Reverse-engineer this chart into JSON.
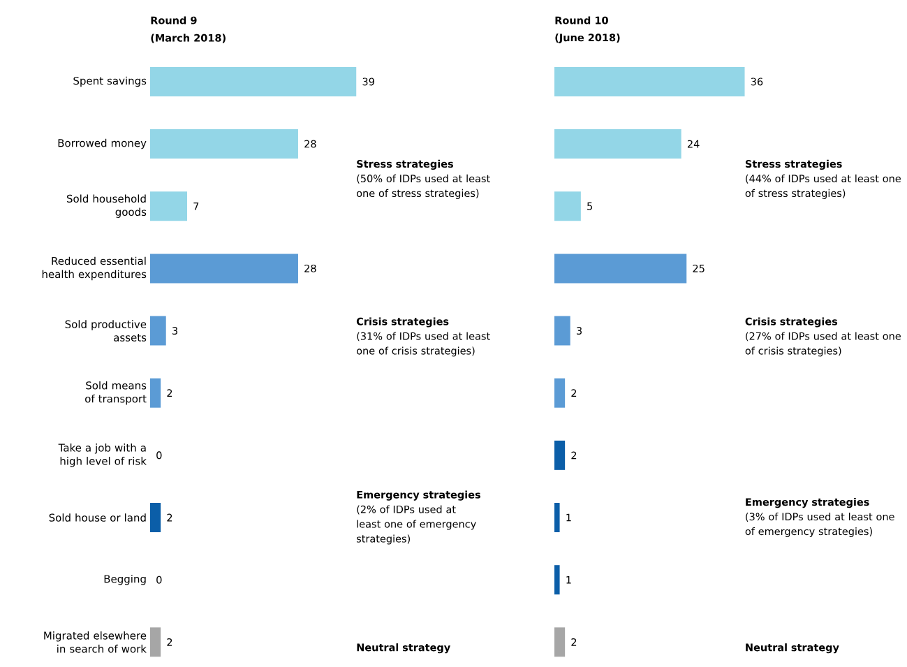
{
  "chart_data": [
    {
      "type": "bar",
      "orientation": "horizontal",
      "title": "Round 9",
      "subtitle": "(March 2018)",
      "categories": [
        "Spent savings",
        "Borrowed money",
        "Sold household goods",
        "Reduced essential health expenditures",
        "Sold productive assets",
        "Sold means of transport",
        "Take a job with a high level of risk",
        "Sold house or land",
        "Begging",
        "Migrated elsewhere in search of work"
      ],
      "values": [
        39,
        28,
        7,
        28,
        3,
        2,
        0,
        2,
        0,
        2
      ],
      "colors": [
        "#93d6e7",
        "#93d6e7",
        "#93d6e7",
        "#5b9bd5",
        "#5b9bd5",
        "#5b9bd5",
        "#0b5ea8",
        "#0b5ea8",
        "#0b5ea8",
        "#a6a6a6"
      ],
      "tick_labels": "y",
      "data_labels": true,
      "annotations": [
        "Stress strategies",
        "(50% of IDPs used at least one of stress strategies)",
        "Crisis strategies",
        "(31% of IDPs used at least one of crisis strategies)",
        "Emergency strategies",
        "(2% of IDPs used at least one of emergency strategies)",
        "Neutral strategy"
      ]
    },
    {
      "type": "bar",
      "orientation": "horizontal",
      "title": "Round 10",
      "subtitle": "(June 2018)",
      "categories": [
        null,
        null,
        null,
        null,
        null,
        null,
        null,
        null,
        null,
        null
      ],
      "values": [
        36,
        24,
        5,
        25,
        3,
        2,
        2,
        1,
        1,
        2
      ],
      "colors": [
        "#93d6e7",
        "#93d6e7",
        "#93d6e7",
        "#5b9bd5",
        "#5b9bd5",
        "#5b9bd5",
        "#0b5ea8",
        "#0b5ea8",
        "#0b5ea8",
        "#a6a6a6"
      ],
      "tick_labels": false,
      "data_labels": true,
      "annotations": [
        "Stress strategies",
        "(44% of IDPs used at least one of stress strategies)",
        "Crisis strategies",
        "(27% of IDPs used at least one of crisis strategies)",
        "Emergency strategies",
        "(3% of IDPs used at least one of emergency strategies)",
        "Neutral strategy"
      ]
    }
  ]
}
